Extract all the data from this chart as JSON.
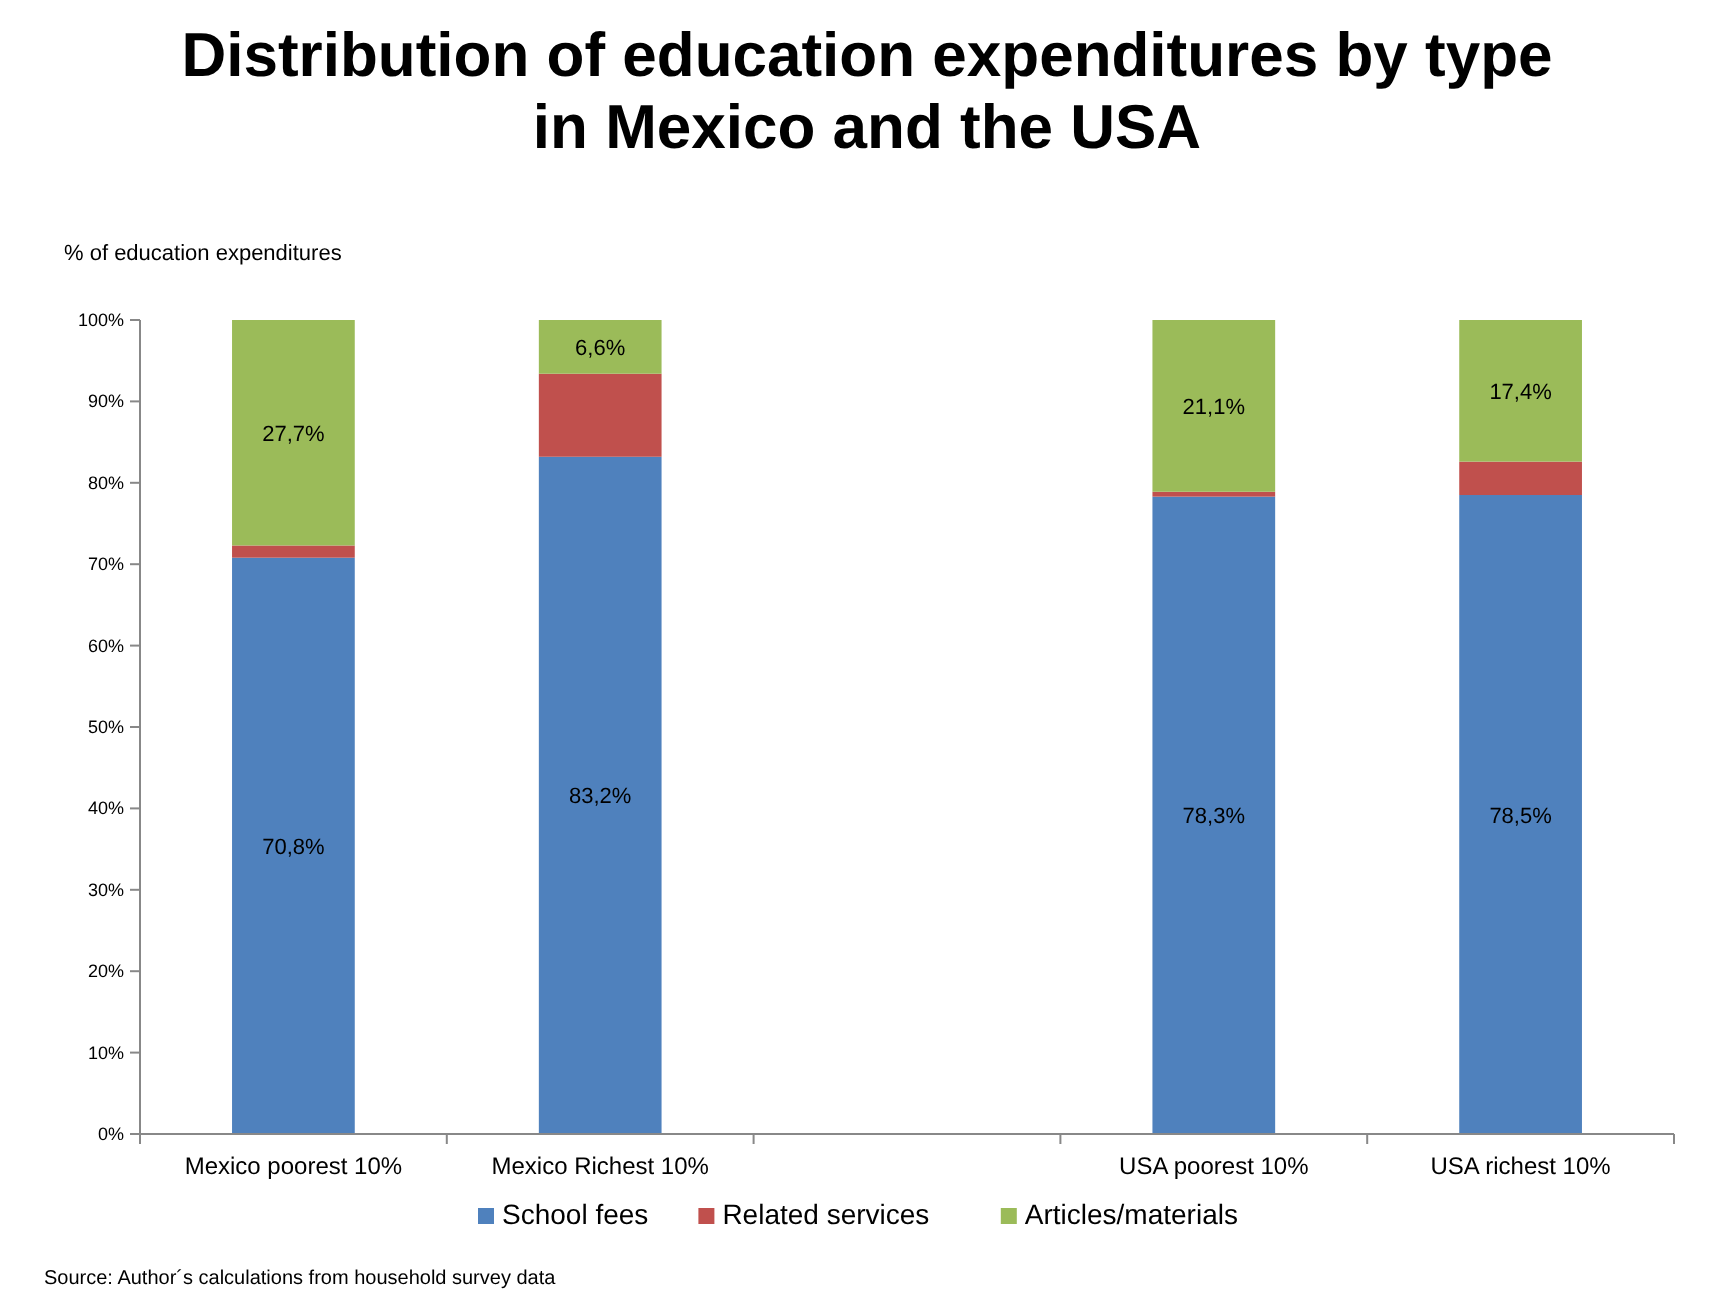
{
  "chart_data": {
    "type": "bar",
    "title": "Distribution of education expenditures by type in Mexico and the USA",
    "ylabel": "% of education expenditures",
    "categories": [
      "Mexico poorest 10%",
      "Mexico Richest 10%",
      null,
      "USA poorest 10%",
      "USA richest 10%"
    ],
    "stacked": true,
    "series": [
      {
        "name": "School fees",
        "color": "#4f81bd",
        "values": [
          70.8,
          83.2,
          null,
          78.3,
          78.5
        ],
        "value_labels": [
          "70,8%",
          "83,2%",
          null,
          "78,3%",
          "78,5%"
        ]
      },
      {
        "name": "Related services",
        "color": "#c0504d",
        "values": [
          1.5,
          10.2,
          null,
          0.6,
          4.1
        ]
      },
      {
        "name": "Articles/materials",
        "color": "#9bbb59",
        "values": [
          27.7,
          6.6,
          null,
          21.1,
          17.4
        ],
        "value_labels": [
          "27,7%",
          "6,6%",
          null,
          "21,1%",
          "17,4%"
        ]
      }
    ],
    "ylim": [
      0,
      100
    ],
    "yticks": [
      {
        "value": 0,
        "label": "0%"
      },
      {
        "value": 10,
        "label": "10%"
      },
      {
        "value": 20,
        "label": "20%"
      },
      {
        "value": 30,
        "label": "30%"
      },
      {
        "value": 40,
        "label": "40%"
      },
      {
        "value": 50,
        "label": "50%"
      },
      {
        "value": 60,
        "label": "60%"
      },
      {
        "value": 70,
        "label": "70%"
      },
      {
        "value": 80,
        "label": "80%"
      },
      {
        "value": 90,
        "label": "90%"
      },
      {
        "value": 100,
        "label": "100%"
      }
    ],
    "legend": "bottom",
    "annotations": [
      "Source: Author´s calculations from household survey data"
    ]
  }
}
